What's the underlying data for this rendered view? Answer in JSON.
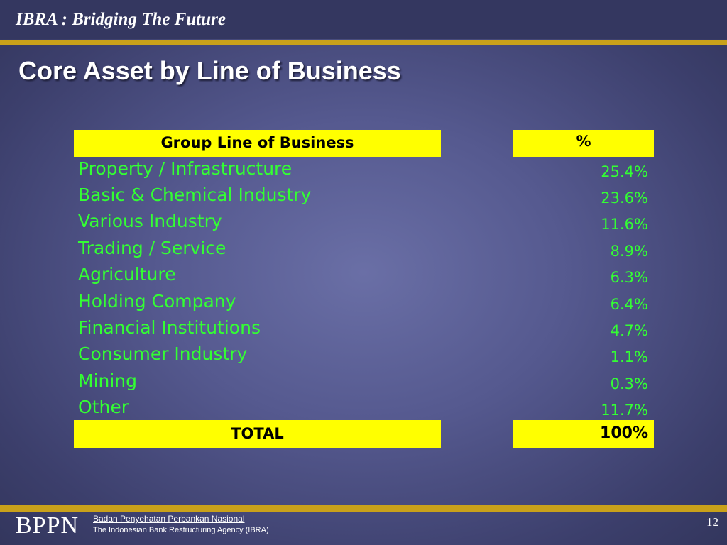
{
  "header": {
    "title": "IBRA : Bridging The Future"
  },
  "slide": {
    "title": "Core Asset by Line of Business"
  },
  "table": {
    "col_label": "Group Line of Business",
    "col_value": "%",
    "rows": [
      {
        "label": "Property / Infrastructure",
        "value": "25.4%"
      },
      {
        "label": "Basic & Chemical Industry",
        "value": "23.6%"
      },
      {
        "label": "Various Industry",
        "value": "11.6%"
      },
      {
        "label": "Trading / Service",
        "value": "8.9%"
      },
      {
        "label": "Agriculture",
        "value": "6.3%"
      },
      {
        "label": "Holding Company",
        "value": "6.4%"
      },
      {
        "label": "Financial Institutions",
        "value": "4.7%"
      },
      {
        "label": "Consumer Industry",
        "value": "1.1%"
      },
      {
        "label": "Mining",
        "value": "0.3%"
      },
      {
        "label": "Other",
        "value": "11.7%"
      }
    ],
    "total_label": "TOTAL",
    "total_value": "100%"
  },
  "footer": {
    "logo": "BPPN",
    "name": "Badan Penyehatan Perbankan Nasional",
    "subtitle": "The Indonesian  Bank Restructuring Agency (IBRA)",
    "page_number": "12"
  },
  "colors": {
    "background": "#55598f",
    "gold_rule": "#c9a11a",
    "header_cell": "#ffff00",
    "row_text": "#33ff33"
  }
}
